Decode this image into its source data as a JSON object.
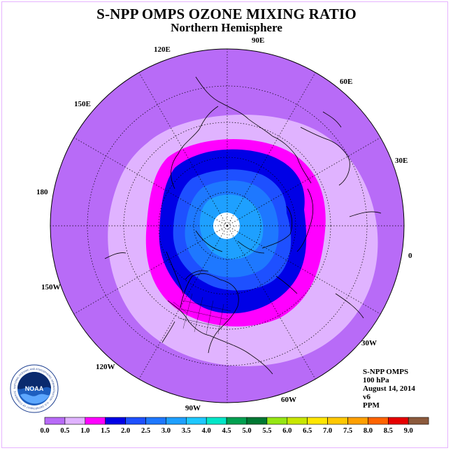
{
  "title": "S-NPP OMPS OZONE MIXING RATIO",
  "subtitle": "Northern Hemisphere",
  "longitude_labels": [
    "90E",
    "60E",
    "30E",
    "0",
    "30W",
    "60W",
    "90W",
    "120W",
    "150W",
    "180",
    "150E",
    "120E"
  ],
  "info": {
    "instrument": "S-NPP OMPS",
    "level": "100 hPa",
    "date": "August 14, 2014",
    "version": "v6",
    "units": "PPM"
  },
  "logo": {
    "name": "NOAA",
    "ring_text": "NATIONAL OCEANIC AND ATMOSPHERIC ADMINISTRATION · U.S. DEPARTMENT OF COMMERCE"
  },
  "colorbar": {
    "tick_labels": [
      "0.0",
      "0.5",
      "1.0",
      "1.5",
      "2.0",
      "2.5",
      "3.0",
      "3.5",
      "4.0",
      "4.5",
      "5.0",
      "5.5",
      "6.0",
      "6.5",
      "7.0",
      "7.5",
      "8.0",
      "8.5",
      "9.0"
    ],
    "colors": [
      "#b86bf7",
      "#e0b3ff",
      "#ff00ff",
      "#0000e6",
      "#1e50ff",
      "#1e78ff",
      "#1ea0ff",
      "#1ec8ff",
      "#00e6c8",
      "#00a050",
      "#007832",
      "#96e614",
      "#c8e600",
      "#ffe600",
      "#ffc800",
      "#ffa000",
      "#ff6400",
      "#e60000",
      "#8c5a3c"
    ]
  },
  "field_contours": [
    {
      "level_ppm": 0.5,
      "color": "#e0b3ff"
    },
    {
      "level_ppm": 1.0,
      "color": "#ff00ff"
    },
    {
      "level_ppm": 1.5,
      "color": "#0000e6"
    },
    {
      "level_ppm": 2.0,
      "color": "#1e50ff"
    },
    {
      "level_ppm": 2.5,
      "color": "#1e78ff"
    },
    {
      "level_ppm": 3.0,
      "color": "#1ea0ff"
    }
  ],
  "background_color": "#b86bf7"
}
